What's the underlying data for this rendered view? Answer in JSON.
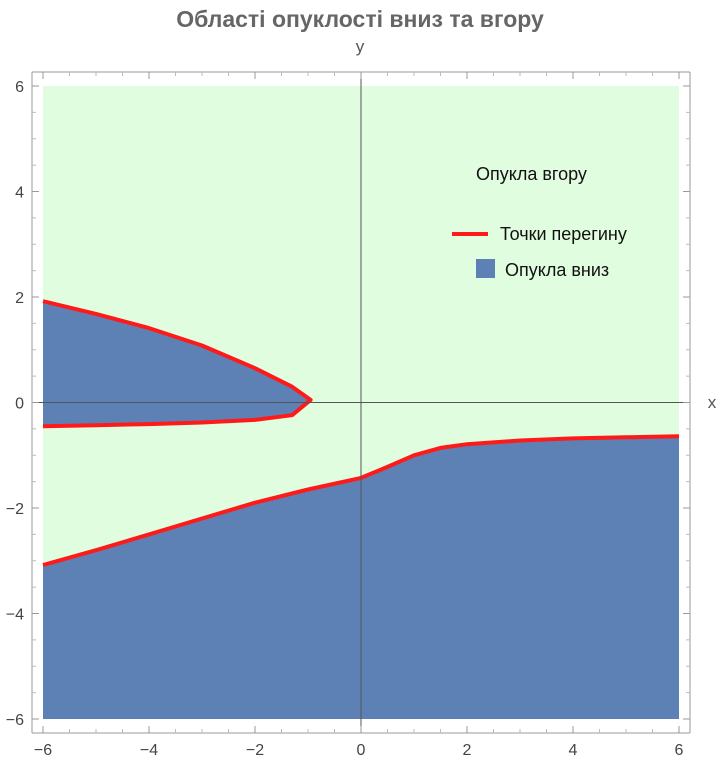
{
  "chart_data": {
    "type": "area",
    "title": "Області опуклості вниз та вгору",
    "xlabel": "x",
    "ylabel": "y",
    "xlim": [
      -6,
      6
    ],
    "ylim": [
      -6,
      6
    ],
    "x_ticks": [
      "−6",
      "−4",
      "−2",
      "0",
      "2",
      "4",
      "6"
    ],
    "y_ticks": [
      "−6",
      "−4",
      "−2",
      "0",
      "2",
      "4",
      "6"
    ],
    "x_tick_values": [
      -6,
      -4,
      -2,
      0,
      2,
      4,
      6
    ],
    "y_tick_values": [
      -6,
      -4,
      -2,
      0,
      2,
      4,
      6
    ],
    "background_region": {
      "label": "Опукла вгору",
      "color": "#e0fde0"
    },
    "regions": [
      {
        "label": "Опукла вниз",
        "color": "#5d81b4",
        "boundary_upper": [
          [
            -6,
            1.92
          ],
          [
            -5,
            1.68
          ],
          [
            -4,
            1.41
          ],
          [
            -3,
            1.08
          ],
          [
            -2,
            0.65
          ],
          [
            -1.3,
            0.3
          ],
          [
            -0.95,
            0.05
          ]
        ],
        "boundary_lower": [
          [
            -6,
            -0.45
          ],
          [
            -5,
            -0.43
          ],
          [
            -4,
            -0.41
          ],
          [
            -3,
            -0.38
          ],
          [
            -2,
            -0.33
          ],
          [
            -1.3,
            -0.24
          ],
          [
            -0.95,
            0.05
          ]
        ]
      },
      {
        "label": "Опукла вниз",
        "color": "#5d81b4",
        "boundary_upper": [
          [
            -6,
            -3.08
          ],
          [
            -5,
            -2.8
          ],
          [
            -4,
            -2.5
          ],
          [
            -3,
            -2.2
          ],
          [
            -2,
            -1.9
          ],
          [
            -1,
            -1.65
          ],
          [
            0,
            -1.43
          ],
          [
            0.5,
            -1.22
          ],
          [
            1,
            -1.0
          ],
          [
            1.5,
            -0.86
          ],
          [
            2,
            -0.79
          ],
          [
            3,
            -0.72
          ],
          [
            4,
            -0.68
          ],
          [
            5,
            -0.66
          ],
          [
            6,
            -0.64
          ]
        ],
        "fill_to": -6
      }
    ],
    "series": [
      {
        "name": "Точки перегину",
        "color": "#ff1a1a"
      }
    ],
    "legend": {
      "position": "top-right",
      "entries": [
        {
          "label": "Опукла вгору",
          "swatch": "none"
        },
        {
          "label": "Точки перегину",
          "swatch": "line",
          "color": "#ff1a1a"
        },
        {
          "label": "Опукла вниз",
          "swatch": "box",
          "color": "#5d81b4"
        }
      ]
    },
    "grid": false
  }
}
